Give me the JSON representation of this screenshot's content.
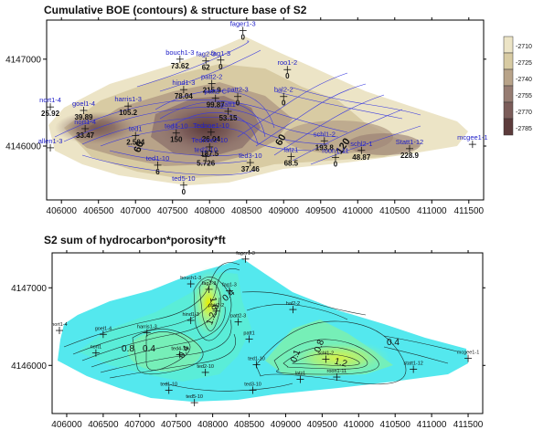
{
  "chart_data": [
    {
      "type": "contour",
      "title": "Cumulative BOE (contours) & structure base of S2",
      "x_ticks": [
        406000,
        406500,
        407000,
        407500,
        408000,
        408500,
        409000,
        409500,
        410000,
        410500,
        411000,
        411500
      ],
      "y_ticks": [
        4146000,
        4147000
      ],
      "xlim": [
        405800,
        411700
      ],
      "ylim": [
        4145380,
        4147450
      ],
      "colorbar": {
        "labels": [
          "-2710",
          "-2725",
          "-2740",
          "-2755",
          "-2770",
          "-2785"
        ],
        "colors": [
          "#ece4c6",
          "#d8cba3",
          "#b8a389",
          "#967c72",
          "#7b5c59",
          "#5c3b3b"
        ]
      },
      "wells": [
        {
          "name": "fager1-3",
          "x": 408450,
          "y": 4147330,
          "value": "0"
        },
        {
          "name": "bouch1-3",
          "x": 407600,
          "y": 4147000,
          "value": "73.62"
        },
        {
          "name": "fag2-3",
          "x": 407950,
          "y": 4146980,
          "value": "62"
        },
        {
          "name": "fag1-3",
          "x": 408150,
          "y": 4146990,
          "value": "0"
        },
        {
          "name": "roo1-2",
          "x": 409050,
          "y": 4146880,
          "value": "0"
        },
        {
          "name": "hal2-2",
          "x": 409000,
          "y": 4146570,
          "value": "0"
        },
        {
          "name": "patt2-2",
          "x": 408030,
          "y": 4146720,
          "value": "215.9"
        },
        {
          "name": "hind1-3",
          "x": 407650,
          "y": 4146650,
          "value": "78.04"
        },
        {
          "name": "patt2-C",
          "x": 408080,
          "y": 4146550,
          "value": "99.87"
        },
        {
          "name": "patt2-3",
          "x": 408380,
          "y": 4146570,
          "value": "0"
        },
        {
          "name": "patt1",
          "x": 408250,
          "y": 4146400,
          "value": "53.15"
        },
        {
          "name": "nort1-4",
          "x": 405850,
          "y": 4146450,
          "value": "25.92"
        },
        {
          "name": "goel1-4",
          "x": 406300,
          "y": 4146410,
          "value": "39.89"
        },
        {
          "name": "harris1-3",
          "x": 406900,
          "y": 4146460,
          "value": "105.2"
        },
        {
          "name": "nort1-4",
          "x": 406320,
          "y": 4146200,
          "value": "33.47"
        },
        {
          "name": "ted1",
          "x": 407000,
          "y": 4146120,
          "value": "2.504"
        },
        {
          "name": "ted4-10",
          "x": 407550,
          "y": 4146150,
          "value": "150"
        },
        {
          "name": "Tednoe1-10",
          "x": 408020,
          "y": 4146160,
          "value": "26.04"
        },
        {
          "name": "Tednoe2-10",
          "x": 408000,
          "y": 4145990,
          "value": "187.5"
        },
        {
          "name": "ted2-10",
          "x": 407950,
          "y": 4145880,
          "value": "5.726"
        },
        {
          "name": "ted3-10",
          "x": 408550,
          "y": 4145810,
          "value": "37.46"
        },
        {
          "name": "ted1-10",
          "x": 407300,
          "y": 4145780,
          "value": "6"
        },
        {
          "name": "ted5-10",
          "x": 407650,
          "y": 4145550,
          "value": "0"
        },
        {
          "name": "schl1-2",
          "x": 409550,
          "y": 4146060,
          "value": "193.8"
        },
        {
          "name": "latz1",
          "x": 409100,
          "y": 4145880,
          "value": "68.5"
        },
        {
          "name": "roon1-11",
          "x": 409700,
          "y": 4145870,
          "value": "0"
        },
        {
          "name": "schl2-1",
          "x": 410050,
          "y": 4145950,
          "value": "48.87"
        },
        {
          "name": "Statt1-12",
          "x": 410700,
          "y": 4145970,
          "value": "228.9"
        },
        {
          "name": "mcgee1-1",
          "x": 411550,
          "y": 4146020,
          "value": ""
        },
        {
          "name": "allen1-3",
          "x": 405850,
          "y": 4145980,
          "value": ""
        }
      ],
      "contour_labels": [
        "60",
        "60",
        "120"
      ]
    },
    {
      "type": "contour",
      "title": "S2 sum of hydrocarbon*porosity*ft",
      "x_ticks": [
        406000,
        406500,
        407000,
        407500,
        408000,
        408500,
        409000,
        409500,
        410000,
        410500,
        411000,
        411500
      ],
      "y_ticks": [
        4146000,
        4147000
      ],
      "xlim": [
        405800,
        411700
      ],
      "ylim": [
        4145380,
        4147450
      ],
      "wells": [
        {
          "name": "fager1-3",
          "x": 408450,
          "y": 4147370
        },
        {
          "name": "bouch1-3",
          "x": 407700,
          "y": 4147050
        },
        {
          "name": "fag2-3",
          "x": 407950,
          "y": 4146980
        },
        {
          "name": "fag1-3",
          "x": 408230,
          "y": 4146960
        },
        {
          "name": "hal2-2",
          "x": 409100,
          "y": 4146720
        },
        {
          "name": "patt2-2",
          "x": 408050,
          "y": 4146700
        },
        {
          "name": "hind1-3",
          "x": 407700,
          "y": 4146580
        },
        {
          "name": "patt2-3",
          "x": 408350,
          "y": 4146560
        },
        {
          "name": "patt1",
          "x": 408500,
          "y": 4146340
        },
        {
          "name": "nort1-4",
          "x": 405900,
          "y": 4146450
        },
        {
          "name": "goel1-4",
          "x": 406500,
          "y": 4146400
        },
        {
          "name": "harris1-3",
          "x": 407100,
          "y": 4146420
        },
        {
          "name": "nort1",
          "x": 406400,
          "y": 4146160
        },
        {
          "name": "ted4-10",
          "x": 407550,
          "y": 4146140
        },
        {
          "name": "ted1-10",
          "x": 408600,
          "y": 4146010
        },
        {
          "name": "ted2-10",
          "x": 407900,
          "y": 4145910
        },
        {
          "name": "ted1-10",
          "x": 407400,
          "y": 4145680
        },
        {
          "name": "ted3-10",
          "x": 408550,
          "y": 4145680
        },
        {
          "name": "ted5-10",
          "x": 407750,
          "y": 4145520
        },
        {
          "name": "schl1-2",
          "x": 409550,
          "y": 4146080
        },
        {
          "name": "latz1",
          "x": 409200,
          "y": 4145820
        },
        {
          "name": "roon1-11",
          "x": 409700,
          "y": 4145850
        },
        {
          "name": "statt1-12",
          "x": 410750,
          "y": 4145950
        },
        {
          "name": "mcgee1-1",
          "x": 411500,
          "y": 4146090
        }
      ],
      "contour_labels": [
        "1.6",
        "0.4",
        "1.2",
        "0.4",
        "0.8",
        "0.4",
        "0.1",
        "0.8",
        "1.2",
        "0.4"
      ]
    }
  ]
}
